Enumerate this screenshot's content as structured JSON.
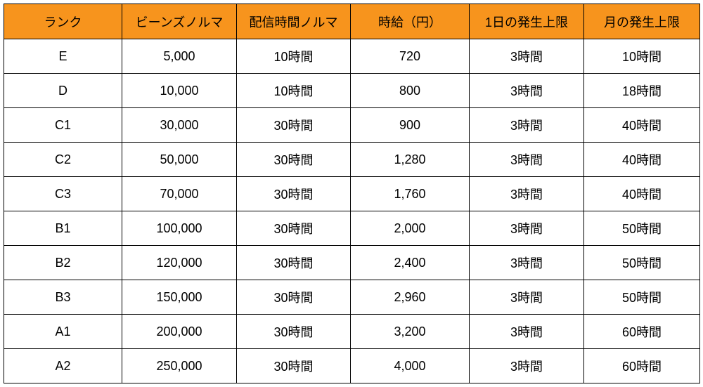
{
  "table": {
    "header": [
      "ランク",
      "ビーンズノルマ",
      "配信時間ノルマ",
      "時給（円）",
      "1日の発生上限",
      "月の発生上限"
    ],
    "rows": [
      [
        "E",
        "5,000",
        "10時間",
        "720",
        "3時間",
        "10時間"
      ],
      [
        "D",
        "10,000",
        "10時間",
        "800",
        "3時間",
        "18時間"
      ],
      [
        "C1",
        "30,000",
        "30時間",
        "900",
        "3時間",
        "40時間"
      ],
      [
        "C2",
        "50,000",
        "30時間",
        "1,280",
        "3時間",
        "40時間"
      ],
      [
        "C3",
        "70,000",
        "30時間",
        "1,760",
        "3時間",
        "40時間"
      ],
      [
        "B1",
        "100,000",
        "30時間",
        "2,000",
        "3時間",
        "50時間"
      ],
      [
        "B2",
        "120,000",
        "30時間",
        "2,400",
        "3時間",
        "50時間"
      ],
      [
        "B3",
        "150,000",
        "30時間",
        "2,960",
        "3時間",
        "50時間"
      ],
      [
        "A1",
        "200,000",
        "30時間",
        "3,200",
        "3時間",
        "60時間"
      ],
      [
        "A2",
        "250,000",
        "30時間",
        "4,000",
        "3時間",
        "60時間"
      ]
    ]
  }
}
